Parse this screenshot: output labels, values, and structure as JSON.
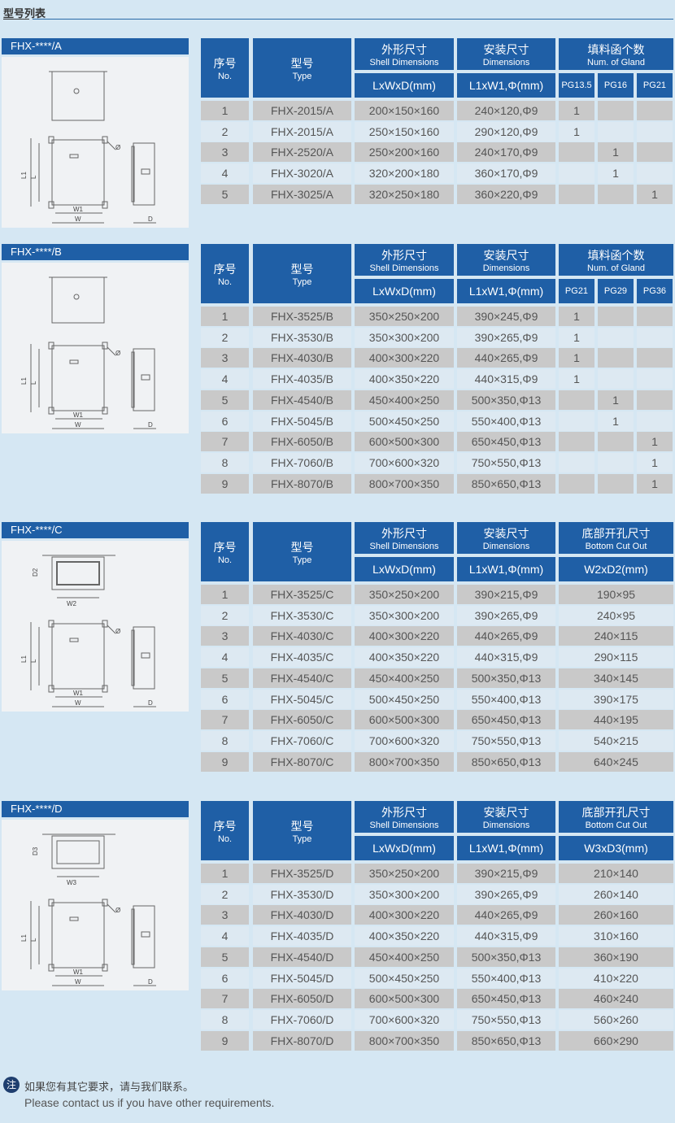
{
  "page_title": "型号列表",
  "colors": {
    "header": "#1f5fa6",
    "row_odd": "#c9c9c9",
    "row_even": "#dde9f2",
    "background": "#d5e7f3"
  },
  "headers": {
    "no_zh": "序号",
    "no_en": "No.",
    "type_zh": "型号",
    "type_en": "Type",
    "shell_zh": "外形尺寸",
    "shell_en": "Shell Dimensions",
    "shell_unit": "LxWxD(mm)",
    "install_zh": "安装尺寸",
    "install_en": "Dimensions",
    "install_unit": "L1xW1,Φ(mm)",
    "gland_zh": "填料函个数",
    "gland_en": "Num. of Gland",
    "cut_zh": "底部开孔尺寸",
    "cut_en": "Bottom Cut Out"
  },
  "sections": [
    {
      "title": "FHX-****/A",
      "last": "gland",
      "sub": [
        "PG13.5",
        "PG16",
        "PG21"
      ],
      "rows": [
        [
          "1",
          "FHX-2015/A",
          "200×150×160",
          "240×120,Φ9",
          "1",
          "",
          ""
        ],
        [
          "2",
          "FHX-2015/A",
          "250×150×160",
          "290×120,Φ9",
          "1",
          "",
          ""
        ],
        [
          "3",
          "FHX-2520/A",
          "250×200×160",
          "240×170,Φ9",
          "",
          "1",
          ""
        ],
        [
          "4",
          "FHX-3020/A",
          "320×200×180",
          "360×170,Φ9",
          "",
          "1",
          ""
        ],
        [
          "5",
          "FHX-3025/A",
          "320×250×180",
          "360×220,Φ9",
          "",
          "",
          "1"
        ]
      ]
    },
    {
      "title": "FHX-****/B",
      "last": "gland",
      "sub": [
        "PG21",
        "PG29",
        "PG36"
      ],
      "rows": [
        [
          "1",
          "FHX-3525/B",
          "350×250×200",
          "390×245,Φ9",
          "1",
          "",
          ""
        ],
        [
          "2",
          "FHX-3530/B",
          "350×300×200",
          "390×265,Φ9",
          "1",
          "",
          ""
        ],
        [
          "3",
          "FHX-4030/B",
          "400×300×220",
          "440×265,Φ9",
          "1",
          "",
          ""
        ],
        [
          "4",
          "FHX-4035/B",
          "400×350×220",
          "440×315,Φ9",
          "1",
          "",
          ""
        ],
        [
          "5",
          "FHX-4540/B",
          "450×400×250",
          "500×350,Φ13",
          "",
          "1",
          ""
        ],
        [
          "6",
          "FHX-5045/B",
          "500×450×250",
          "550×400,Φ13",
          "",
          "1",
          ""
        ],
        [
          "7",
          "FHX-6050/B",
          "600×500×300",
          "650×450,Φ13",
          "",
          "",
          "1"
        ],
        [
          "8",
          "FHX-7060/B",
          "700×600×320",
          "750×550,Φ13",
          "",
          "",
          "1"
        ],
        [
          "9",
          "FHX-8070/B",
          "800×700×350",
          "850×650,Φ13",
          "",
          "",
          "1"
        ]
      ]
    },
    {
      "title": "FHX-****/C",
      "last": "cut",
      "sub": [
        "W2xD2(mm)"
      ],
      "rows": [
        [
          "1",
          "FHX-3525/C",
          "350×250×200",
          "390×215,Φ9",
          "190×95"
        ],
        [
          "2",
          "FHX-3530/C",
          "350×300×200",
          "390×265,Φ9",
          "240×95"
        ],
        [
          "3",
          "FHX-4030/C",
          "400×300×220",
          "440×265,Φ9",
          "240×115"
        ],
        [
          "4",
          "FHX-4035/C",
          "400×350×220",
          "440×315,Φ9",
          "290×115"
        ],
        [
          "5",
          "FHX-4540/C",
          "450×400×250",
          "500×350,Φ13",
          "340×145"
        ],
        [
          "6",
          "FHX-5045/C",
          "500×450×250",
          "550×400,Φ13",
          "390×175"
        ],
        [
          "7",
          "FHX-6050/C",
          "600×500×300",
          "650×450,Φ13",
          "440×195"
        ],
        [
          "8",
          "FHX-7060/C",
          "700×600×320",
          "750×550,Φ13",
          "540×215"
        ],
        [
          "9",
          "FHX-8070/C",
          "800×700×350",
          "850×650,Φ13",
          "640×245"
        ]
      ]
    },
    {
      "title": "FHX-****/D",
      "last": "cut",
      "sub": [
        "W3xD3(mm)"
      ],
      "rows": [
        [
          "1",
          "FHX-3525/D",
          "350×250×200",
          "390×215,Φ9",
          "210×140"
        ],
        [
          "2",
          "FHX-3530/D",
          "350×300×200",
          "390×265,Φ9",
          "260×140"
        ],
        [
          "3",
          "FHX-4030/D",
          "400×300×220",
          "440×265,Φ9",
          "260×160"
        ],
        [
          "4",
          "FHX-4035/D",
          "400×350×220",
          "440×315,Φ9",
          "310×160"
        ],
        [
          "5",
          "FHX-4540/D",
          "450×400×250",
          "500×350,Φ13",
          "360×190"
        ],
        [
          "6",
          "FHX-5045/D",
          "500×450×250",
          "550×400,Φ13",
          "410×220"
        ],
        [
          "7",
          "FHX-6050/D",
          "600×500×300",
          "650×450,Φ13",
          "460×240"
        ],
        [
          "8",
          "FHX-7060/D",
          "700×600×320",
          "750×550,Φ13",
          "560×260"
        ],
        [
          "9",
          "FHX-8070/D",
          "800×700×350",
          "850×650,Φ13",
          "660×290"
        ]
      ]
    }
  ],
  "drawing_labels": {
    "l1": "L1",
    "l": "L",
    "w1": "W1",
    "w": "W",
    "d": "D",
    "phi": "Ø",
    "w2": "W2",
    "d2": "D2",
    "w3": "W3",
    "d3": "D3"
  },
  "note": {
    "badge": "注",
    "zh": "如果您有其它要求，请与我们联系。",
    "en": "Please contact us if you have other requirements."
  }
}
